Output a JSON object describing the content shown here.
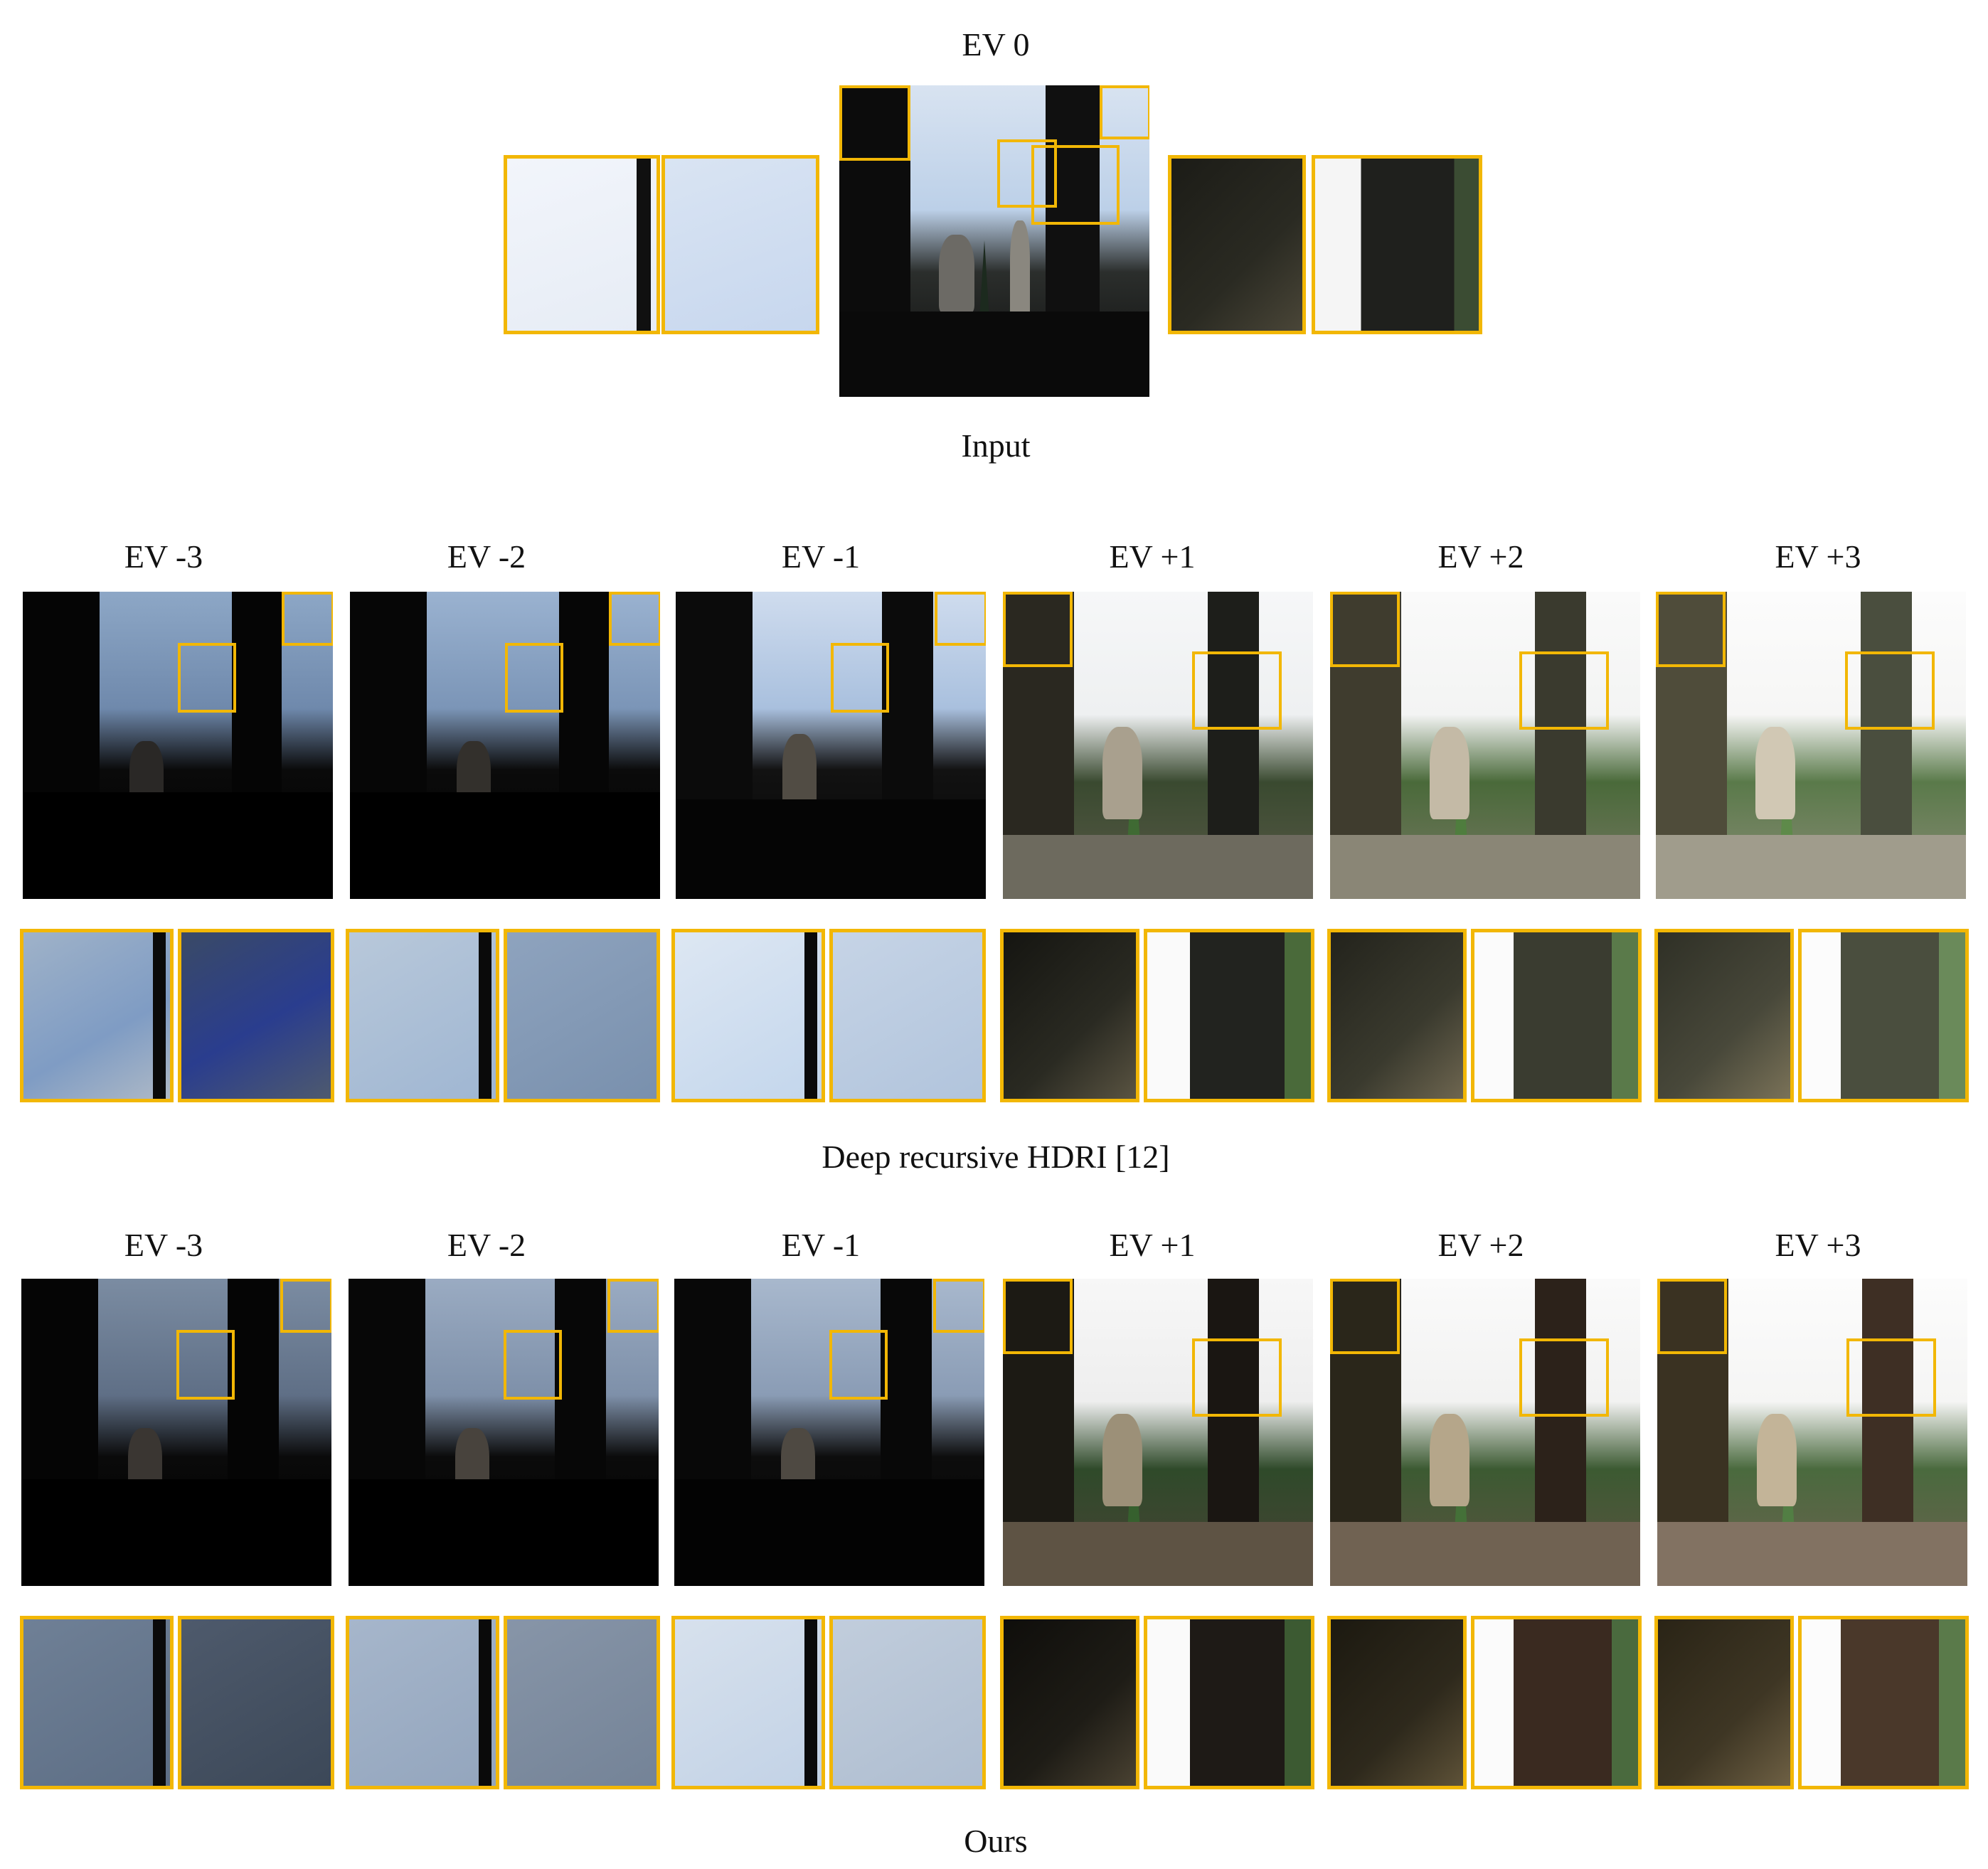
{
  "input": {
    "top_label": "EV 0",
    "bottom_label": "Input"
  },
  "method1": {
    "caption": "Deep recursive HDRI [12]",
    "ev_labels": [
      "EV -3",
      "EV -2",
      "EV -1",
      "EV +1",
      "EV +2",
      "EV +3"
    ]
  },
  "method2": {
    "caption": "Ours",
    "ev_labels": [
      "EV -3",
      "EV -2",
      "EV -1",
      "EV +1",
      "EV +2",
      "EV +3"
    ]
  },
  "colors": {
    "crop_border": "#F2B705"
  }
}
